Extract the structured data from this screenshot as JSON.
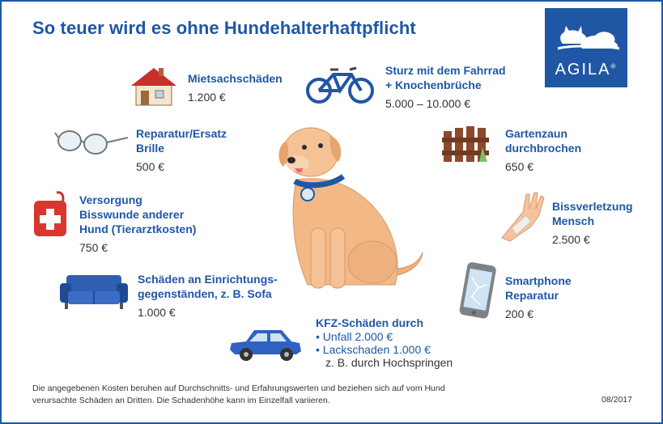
{
  "title": "So teuer wird es ohne Hundehalterhaftpflicht",
  "brand": {
    "name": "AGILA",
    "registered": "®",
    "color": "#1f57a5"
  },
  "items": [
    {
      "id": "mietsachschaeden",
      "label": "Mietsachschäden",
      "value": "1.200 €",
      "icon": "house-icon"
    },
    {
      "id": "fahrrad",
      "label": "Sturz mit dem Fahrrad\n+ Knochenbrüche",
      "value": "5.000 – 10.000 €",
      "icon": "bicycle-icon"
    },
    {
      "id": "brille",
      "label": "Reparatur/Ersatz\nBrille",
      "value": "500 €",
      "icon": "glasses-icon"
    },
    {
      "id": "gartenzaun",
      "label": "Gartenzaun\ndurchbrochen",
      "value": "650 €",
      "icon": "fence-icon"
    },
    {
      "id": "bisswunde-hund",
      "label": "Versorgung\nBisswunde anderer\nHund (Tierarztkosten)",
      "value": "750 €",
      "icon": "first-aid-kit-icon"
    },
    {
      "id": "bissverletzung-mensch",
      "label": "Bissverletzung\nMensch",
      "value": "2.500 €",
      "icon": "bandaged-hand-icon"
    },
    {
      "id": "einrichtung",
      "label": "Schäden an Einrichtungs-\ngegenständen, z. B. Sofa",
      "value": "1.000 €",
      "icon": "sofa-icon"
    },
    {
      "id": "smartphone",
      "label": "Smartphone\nReparatur",
      "value": "200 €",
      "icon": "broken-phone-icon"
    }
  ],
  "kfz": {
    "label": "KFZ-Schäden durch",
    "bullets": [
      {
        "text": "Unfall 2.000 €",
        "sub": ""
      },
      {
        "text": "Lackschaden 1.000 €",
        "sub": "z. B. durch Hochspringen"
      }
    ],
    "icon": "car-icon"
  },
  "footer": "Die angegebenen Kosten beruhen auf Durchschnitts- und Erfahrungswerten und beziehen sich auf vom Hund verursachte Schäden an Dritten. Die Schadenhöhe kann im Einzelfall variieren.",
  "date": "08/2017"
}
